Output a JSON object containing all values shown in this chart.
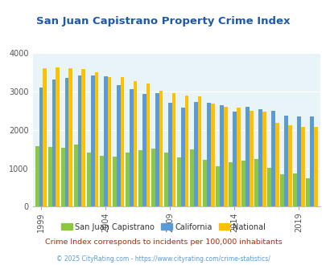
{
  "title": "San Juan Capistrano Property Crime Index",
  "years": [
    1999,
    2000,
    2001,
    2002,
    2003,
    2004,
    2005,
    2006,
    2007,
    2008,
    2009,
    2010,
    2011,
    2012,
    2013,
    2014,
    2015,
    2016,
    2017,
    2018,
    2019,
    2020
  ],
  "sjc": [
    1580,
    1550,
    1530,
    1610,
    1410,
    1330,
    1310,
    1410,
    1480,
    1520,
    1410,
    1290,
    1490,
    1230,
    1050,
    1150,
    1200,
    1250,
    1010,
    850,
    860,
    750
  ],
  "california": [
    3100,
    3300,
    3350,
    3420,
    3420,
    3400,
    3170,
    3050,
    2940,
    2950,
    2700,
    2580,
    2730,
    2700,
    2640,
    2470,
    2610,
    2540,
    2490,
    2380,
    2350,
    2350
  ],
  "national": [
    3600,
    3630,
    3600,
    3590,
    3500,
    3380,
    3370,
    3260,
    3210,
    3020,
    2960,
    2900,
    2870,
    2680,
    2590,
    2580,
    2500,
    2470,
    2180,
    2110,
    2080,
    2070
  ],
  "colors": {
    "sjc": "#8dc63f",
    "california": "#5b9bd5",
    "national": "#ffc000",
    "background": "#e8f4f8",
    "title": "#1e5aa8",
    "subtitle_color": "#cc2200",
    "footer_color": "#5b9bd5",
    "grid": "#ffffff",
    "tick_label": "#555555"
  },
  "tick_years": [
    1999,
    2004,
    2009,
    2014,
    2019
  ],
  "ylim": [
    0,
    4000
  ],
  "yticks": [
    0,
    1000,
    2000,
    3000,
    4000
  ],
  "subtitle": "Crime Index corresponds to incidents per 100,000 inhabitants",
  "footer": "© 2025 CityRating.com - https://www.cityrating.com/crime-statistics/",
  "legend_labels": [
    "San Juan Capistrano",
    "California",
    "National"
  ]
}
